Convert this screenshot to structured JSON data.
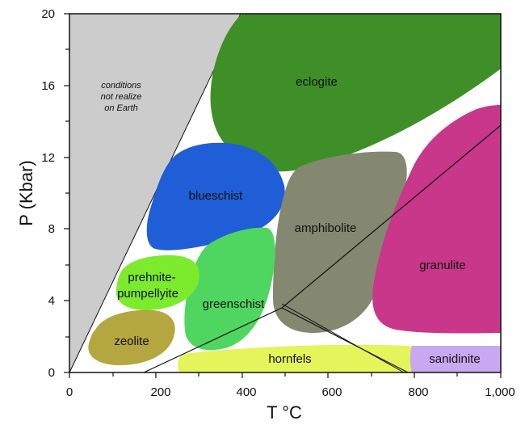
{
  "axes": {
    "x_label": "T °C",
    "y_label": "P (Kbar)",
    "x_ticks": [
      "0",
      "200",
      "400",
      "600",
      "800",
      "1,000"
    ],
    "y_ticks": [
      "0",
      "4",
      "8",
      "12",
      "16",
      "20"
    ]
  },
  "impossible_zone": {
    "line1": "conditions",
    "line2": "not realize",
    "line3": "on Earth"
  },
  "facies": {
    "eclogite": "eclogite",
    "blueschist": "blueschist",
    "amphibolite": "amphibolite",
    "granulite": "granulite",
    "prehnite_line1": "prehnite-",
    "prehnite_line2": "pumpellyite",
    "greenschist": "greenschist",
    "zeolite": "zeolite",
    "hornfels": "hornfels",
    "sanidinite": "sanidinite"
  },
  "colors": {
    "impossible": "#cccccc",
    "eclogite": "#3f8f28",
    "blueschist": "#1f5ed6",
    "amphibolite": "#858870",
    "granulite": "#c8378a",
    "prehnite": "#7ceb2e",
    "greenschist": "#4ed660",
    "zeolite": "#b5a740",
    "hornfels": "#e3f55a",
    "sanidinite": "#c9a8f2"
  }
}
